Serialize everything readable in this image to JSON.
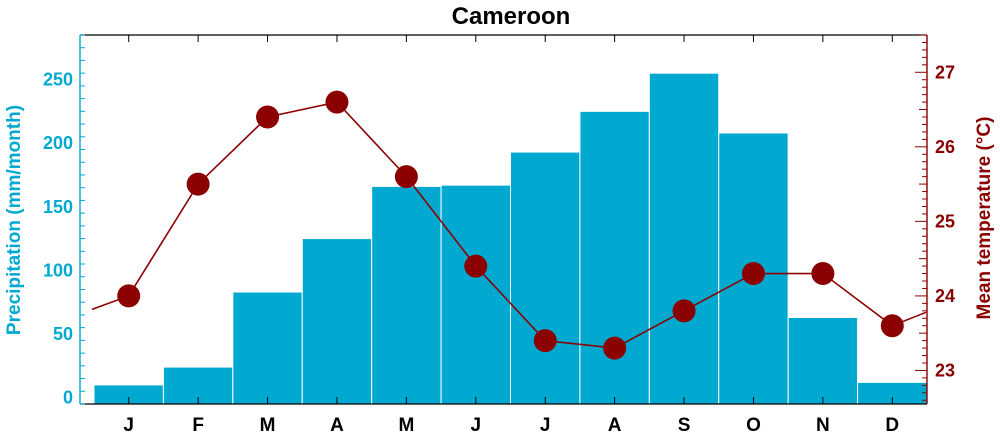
{
  "colors": {
    "precip": "#01A9D1",
    "temp": "#8B0000",
    "frame": "#000000",
    "bar_edge": "#ffffff"
  },
  "chart_data": {
    "type": "bar",
    "title": "Cameroon",
    "categories": [
      "J",
      "F",
      "M",
      "A",
      "M",
      "J",
      "J",
      "A",
      "S",
      "O",
      "N",
      "D"
    ],
    "ylabel_left": "Precipitation (mm/month)",
    "ylabel_right": "Mean temperature (°C)",
    "ylim_left": [
      -5,
      285
    ],
    "ylim_right": [
      22.55,
      27.5
    ],
    "yticks_left": [
      0,
      50,
      100,
      150,
      200,
      250
    ],
    "yticks_right": [
      23,
      24,
      25,
      26,
      27
    ],
    "grid": false,
    "series": [
      {
        "name": "Precipitation",
        "type": "bar",
        "axis": "left",
        "values": [
          10,
          24,
          83,
          125,
          166,
          167,
          193,
          225,
          255,
          208,
          63,
          12
        ]
      },
      {
        "name": "Mean temperature",
        "type": "line",
        "axis": "right",
        "values": [
          24.0,
          25.5,
          26.4,
          26.6,
          25.6,
          24.4,
          23.4,
          23.3,
          23.8,
          24.3,
          24.3,
          23.6
        ]
      }
    ]
  }
}
